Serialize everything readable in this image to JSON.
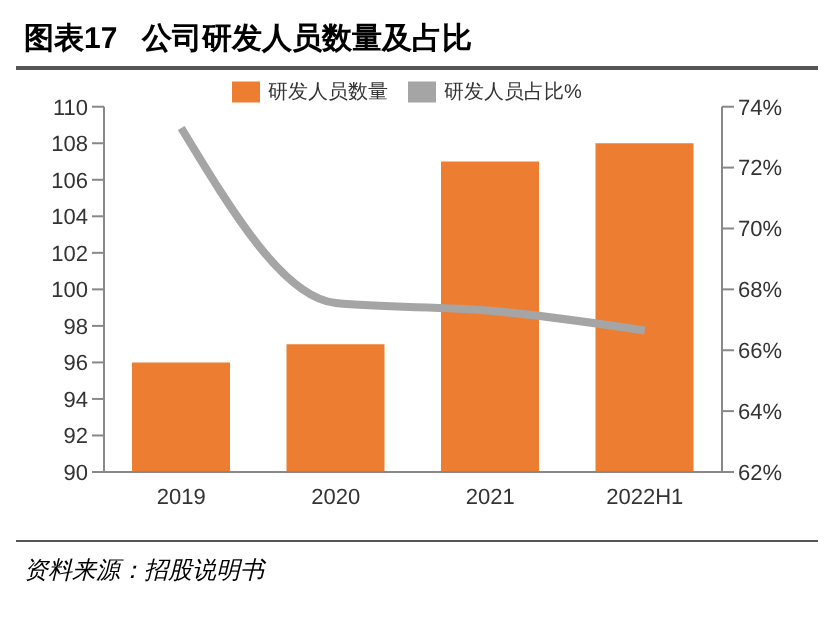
{
  "chart_data": {
    "type": "bar",
    "title": "图表17   公司研发人员数量及占比",
    "categories": [
      "2019",
      "2020",
      "2021",
      "2022H1"
    ],
    "series": [
      {
        "name": "研发人员数量",
        "color": "#ed7d31",
        "values": [
          96,
          97,
          107,
          108
        ]
      },
      {
        "name": "研发人员占比%",
        "type": "line",
        "axis": "y2",
        "color": "#a5a5a5",
        "values": [
          73.3,
          67.55,
          67.3,
          66.65
        ]
      }
    ],
    "ylim": [
      90,
      110
    ],
    "yticks": [
      90,
      92,
      94,
      96,
      98,
      100,
      102,
      104,
      106,
      108,
      110
    ],
    "y2lim": [
      62,
      74
    ],
    "y2ticks": [
      {
        "value": 62,
        "label": "62%"
      },
      {
        "value": 64,
        "label": "64%"
      },
      {
        "value": 66,
        "label": "66%"
      },
      {
        "value": 68,
        "label": "68%"
      },
      {
        "value": 70,
        "label": "70%"
      },
      {
        "value": 72,
        "label": "72%"
      },
      {
        "value": 74,
        "label": "74%"
      }
    ],
    "grid": false,
    "legend": "top",
    "marker": "none",
    "annotations": [
      "资料来源：招股说明书"
    ]
  }
}
